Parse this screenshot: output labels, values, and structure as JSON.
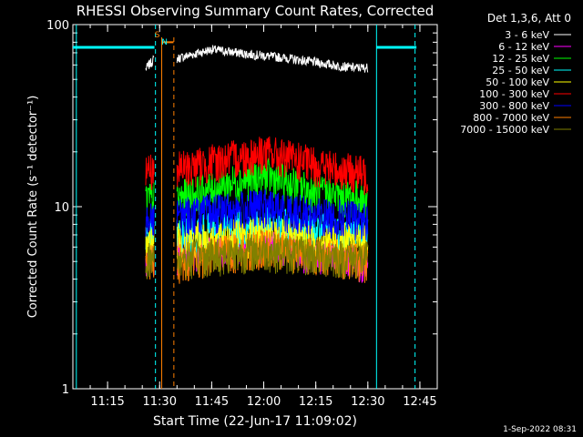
{
  "chart_data": {
    "type": "line",
    "title": "RHESSI Observing Summary Count Rates, Corrected",
    "xlabel": "Start Time (22-Jun-17 11:09:02)",
    "ylabel": "Corrected Count Rate (s⁻¹ detector⁻¹)",
    "y_scale": "log",
    "ylim": [
      1,
      100
    ],
    "xlim_minutes": [
      665,
      770
    ],
    "x_ticks": [
      {
        "t": 675,
        "label": "11:15"
      },
      {
        "t": 690,
        "label": "11:30"
      },
      {
        "t": 705,
        "label": "11:45"
      },
      {
        "t": 720,
        "label": "12:00"
      },
      {
        "t": 735,
        "label": "12:15"
      },
      {
        "t": 750,
        "label": "12:30"
      },
      {
        "t": 765,
        "label": "12:45"
      }
    ],
    "y_ticks": [
      {
        "v": 1,
        "label": "1"
      },
      {
        "v": 10,
        "label": "10"
      },
      {
        "v": 100,
        "label": "100"
      }
    ],
    "legend": {
      "title": "Det 1,3,6, Att 0",
      "position": "right"
    },
    "series": [
      {
        "name": "3 - 6 keV",
        "color": "#ffffff",
        "segments": [
          [
            [
              686,
              57
            ],
            [
              688.5,
              65
            ]
          ],
          [
            [
              695,
              65
            ],
            [
              705,
              73
            ],
            [
              715,
              69
            ],
            [
              725,
              66
            ],
            [
              735,
              62
            ],
            [
              745,
              58
            ],
            [
              750,
              58
            ]
          ]
        ]
      },
      {
        "name": "6 - 12 keV",
        "color": "#ff00ff",
        "segments": [
          [
            [
              686,
              5.5
            ],
            [
              688.5,
              5.5
            ]
          ],
          [
            [
              695,
              5.5
            ],
            [
              720,
              6.5
            ],
            [
              735,
              5.5
            ],
            [
              750,
              5.0
            ]
          ]
        ]
      },
      {
        "name": "12 - 25 keV",
        "color": "#00ff00",
        "segments": [
          [
            [
              686,
              11
            ],
            [
              688.5,
              11
            ]
          ],
          [
            [
              695,
              11
            ],
            [
              720,
              15
            ],
            [
              735,
              12
            ],
            [
              750,
              11
            ]
          ]
        ]
      },
      {
        "name": "25 - 50 keV",
        "color": "#00ffff",
        "segments": [
          [
            [
              686,
              7
            ],
            [
              688.5,
              7
            ]
          ],
          [
            [
              695,
              7
            ],
            [
              720,
              8
            ],
            [
              735,
              7.5
            ],
            [
              750,
              7
            ]
          ]
        ]
      },
      {
        "name": "50 - 100 keV",
        "color": "#ffff00",
        "segments": [
          [
            [
              686,
              6.5
            ],
            [
              688.5,
              6.5
            ]
          ],
          [
            [
              695,
              6.5
            ],
            [
              720,
              7
            ],
            [
              735,
              6.5
            ],
            [
              750,
              6.5
            ]
          ]
        ]
      },
      {
        "name": "100 - 300 keV",
        "color": "#ff0000",
        "segments": [
          [
            [
              686,
              16
            ],
            [
              688.5,
              16
            ]
          ],
          [
            [
              695,
              16
            ],
            [
              720,
              20
            ],
            [
              735,
              17
            ],
            [
              750,
              15
            ]
          ]
        ]
      },
      {
        "name": "300 - 800 keV",
        "color": "#0000ff",
        "segments": [
          [
            [
              686,
              9
            ],
            [
              688.5,
              9
            ]
          ],
          [
            [
              695,
              9
            ],
            [
              720,
              10
            ],
            [
              735,
              9
            ],
            [
              750,
              8.5
            ]
          ]
        ]
      },
      {
        "name": "800 - 7000 keV",
        "color": "#ff7f00",
        "segments": [
          [
            [
              686,
              5
            ],
            [
              688.5,
              5
            ]
          ],
          [
            [
              695,
              5
            ],
            [
              720,
              6
            ],
            [
              735,
              5.5
            ],
            [
              750,
              5
            ]
          ]
        ]
      },
      {
        "name": "7000 - 15000 keV",
        "color": "#808000",
        "segments": [
          [
            [
              686,
              5.2
            ],
            [
              688.5,
              5.2
            ]
          ],
          [
            [
              695,
              5.2
            ],
            [
              720,
              5.8
            ],
            [
              735,
              5.4
            ],
            [
              750,
              5.2
            ]
          ]
        ]
      }
    ],
    "flags": [
      {
        "label": "S",
        "color": "#ff7f00",
        "level": 75
      },
      {
        "label": "N",
        "color": "#00ffff",
        "level": 75
      }
    ],
    "saa_color": "#00ffff",
    "night_color": "#ff7f00"
  },
  "timestamp": "1-Sep-2022 08:31"
}
